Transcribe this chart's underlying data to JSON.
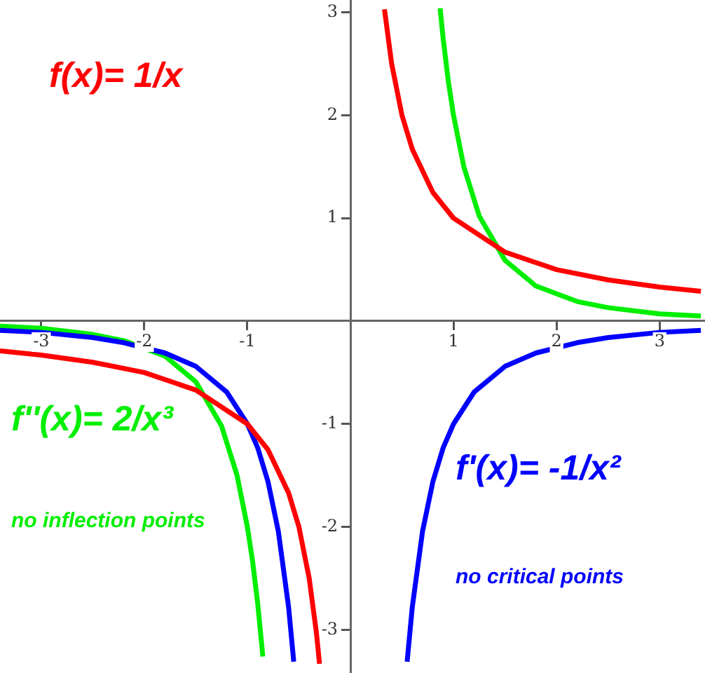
{
  "chart_data": {
    "type": "line",
    "xlim": [
      -3.4,
      3.44
    ],
    "ylim": [
      -3.42,
      3.12
    ],
    "xticks": [
      -3,
      -2,
      -1,
      1,
      2,
      3
    ],
    "yticks": [
      -3,
      -2,
      -1,
      1,
      2,
      3
    ],
    "grid": false,
    "legend": false,
    "marker": "none",
    "line_style": "solid",
    "annotations": [
      "no inflection points",
      "no critical points"
    ],
    "series": [
      {
        "name": "f(x)= 1/x",
        "color": "#ff0000",
        "x": [
          -3.4,
          -3,
          -2.5,
          -2,
          -1.5,
          -1,
          -0.8,
          -0.6,
          -0.5,
          -0.4,
          -0.33,
          -0.3,
          0,
          0.33,
          0.4,
          0.5,
          0.6,
          0.8,
          1,
          1.5,
          2,
          2.5,
          3,
          3.4
        ],
        "values": [
          -0.29,
          -0.33,
          -0.4,
          -0.5,
          -0.67,
          -1,
          -1.25,
          -1.67,
          -2,
          -2.5,
          -3.03,
          -3.33,
          null,
          3.03,
          2.5,
          2,
          1.67,
          1.25,
          1,
          0.67,
          0.5,
          0.4,
          0.33,
          0.29
        ]
      },
      {
        "name": "f'(x)= -1/x²",
        "color": "#0000ff",
        "x": [
          -3.4,
          -3,
          -2.5,
          -2.2,
          -1.8,
          -1.5,
          -1.2,
          -1,
          -0.9,
          -0.8,
          -0.7,
          -0.6,
          -0.55,
          0,
          0.55,
          0.6,
          0.7,
          0.8,
          0.9,
          1,
          1.2,
          1.5,
          1.8,
          2.2,
          2.5,
          3,
          3.4
        ],
        "values": [
          -0.09,
          -0.11,
          -0.16,
          -0.21,
          -0.31,
          -0.44,
          -0.69,
          -1,
          -1.23,
          -1.56,
          -2.04,
          -2.78,
          -3.31,
          null,
          -3.31,
          -2.78,
          -2.04,
          -1.56,
          -1.23,
          -1,
          -0.69,
          -0.44,
          -0.31,
          -0.21,
          -0.16,
          -0.11,
          -0.09
        ]
      },
      {
        "name": "f''(x)= 2/x³",
        "color": "#00ee00",
        "x": [
          -3.4,
          -3,
          -2.5,
          -2.2,
          -1.8,
          -1.5,
          -1.25,
          -1.1,
          -1,
          -0.95,
          -0.9,
          -0.85,
          0,
          0.87,
          0.9,
          0.95,
          1,
          1.1,
          1.25,
          1.5,
          1.8,
          2.2,
          2.5,
          3,
          3.4
        ],
        "values": [
          -0.05,
          -0.07,
          -0.13,
          -0.19,
          -0.34,
          -0.59,
          -1.02,
          -1.5,
          -2,
          -2.33,
          -2.74,
          -3.26,
          null,
          3.04,
          2.74,
          2.33,
          2,
          1.5,
          1.02,
          0.59,
          0.34,
          0.19,
          0.13,
          0.07,
          0.05
        ]
      }
    ]
  }
}
